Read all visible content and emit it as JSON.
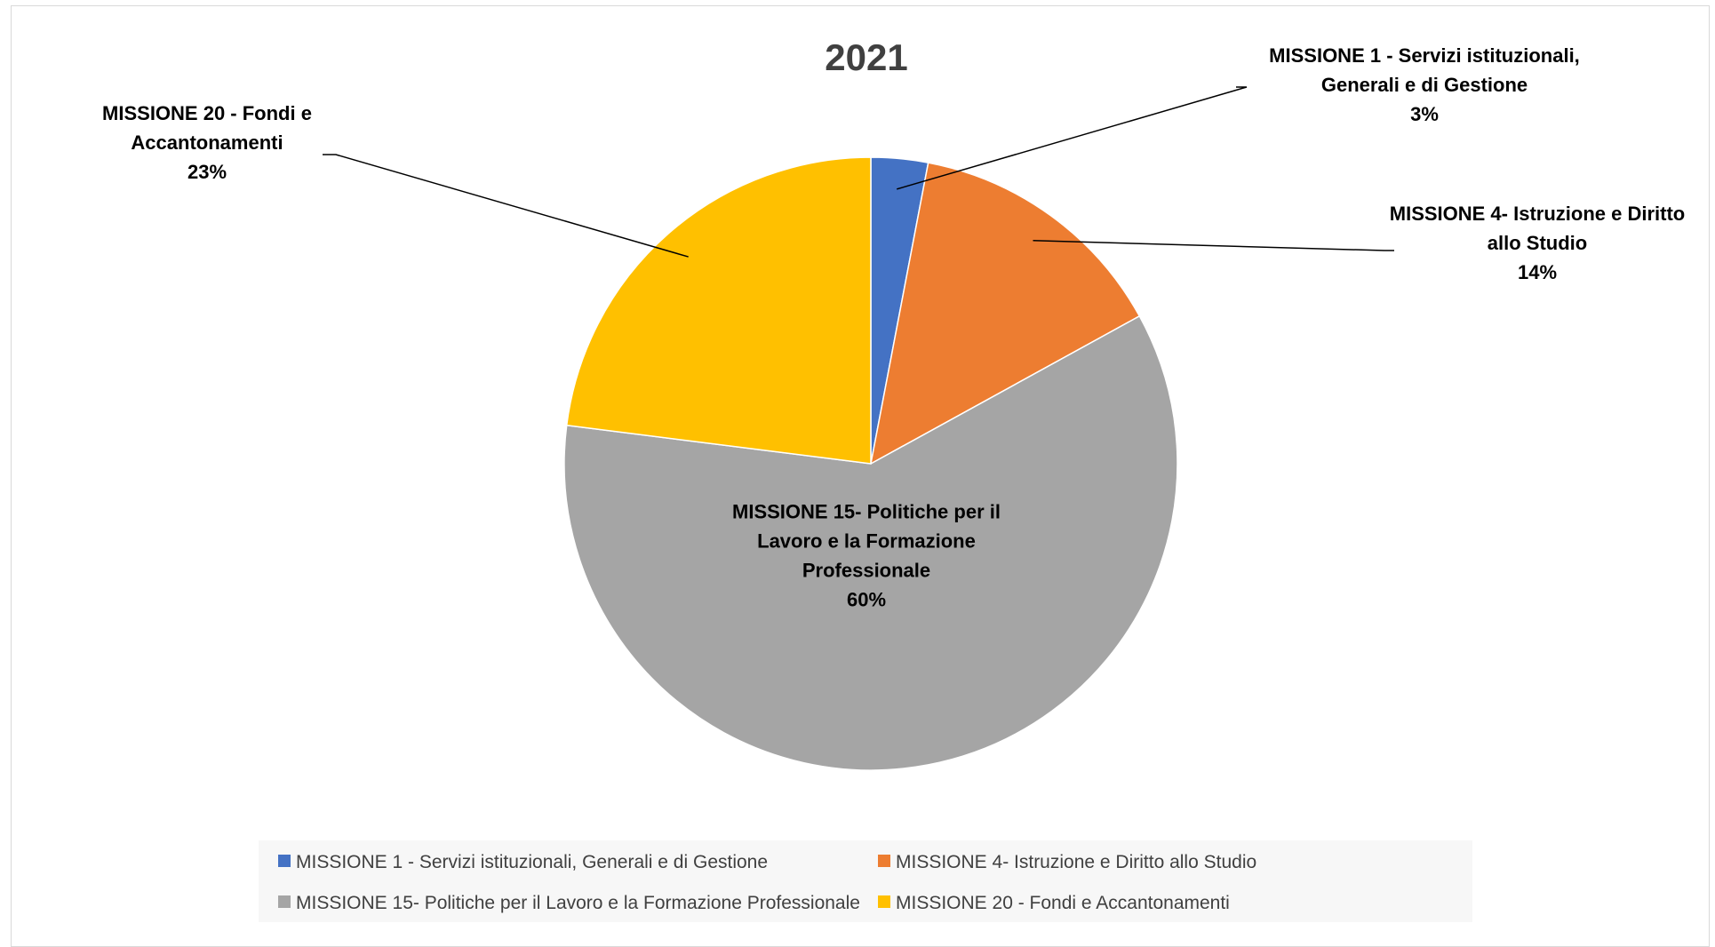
{
  "chart_data": {
    "type": "pie",
    "title": "2021",
    "slices": [
      {
        "label": "MISSIONE 1 - Servizi istituzionali, Generali e di Gestione",
        "label_lines": [
          "MISSIONE 1 - Servizi istituzionali,",
          "Generali e di Gestione",
          "3%"
        ],
        "percent": 3,
        "color": "#4472C4"
      },
      {
        "label": "MISSIONE 4- Istruzione e Diritto allo Studio",
        "label_lines": [
          "MISSIONE 4- Istruzione e Diritto",
          "allo Studio",
          "14%"
        ],
        "percent": 14,
        "color": "#ED7D31"
      },
      {
        "label": "MISSIONE 15- Politiche per il Lavoro e la Formazione Professionale",
        "label_lines": [
          "MISSIONE 15- Politiche per il",
          "Lavoro e la Formazione",
          "Professionale",
          "60%"
        ],
        "percent": 60,
        "color": "#A5A5A5"
      },
      {
        "label": "MISSIONE 20 - Fondi e Accantonamenti",
        "label_lines": [
          "MISSIONE 20 - Fondi e",
          "Accantonamenti",
          "23%"
        ],
        "percent": 23,
        "color": "#FFC000"
      }
    ],
    "legend_position": "bottom"
  }
}
